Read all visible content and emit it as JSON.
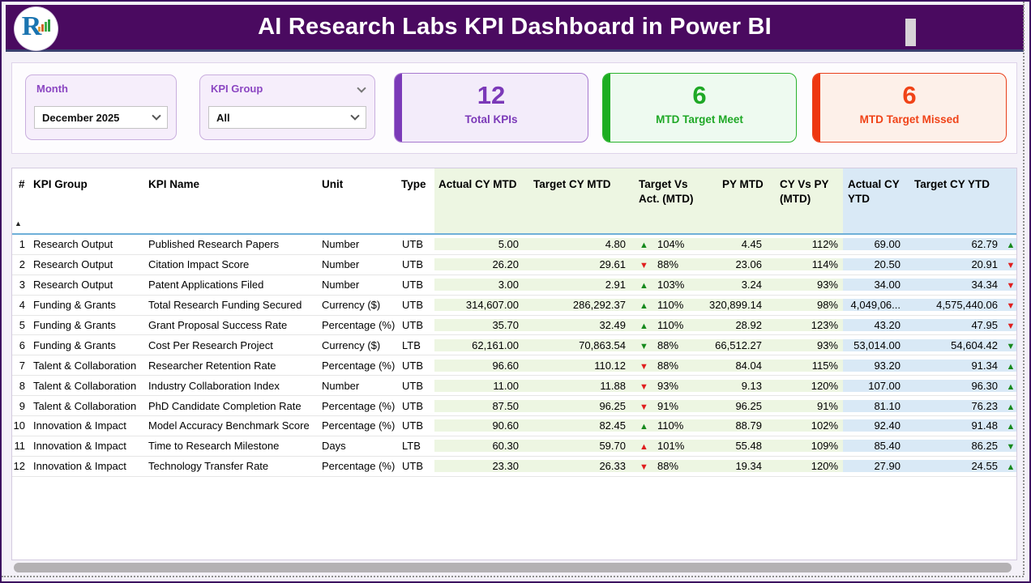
{
  "header": {
    "title": "AI Research Labs KPI Dashboard in Power BI"
  },
  "filters": {
    "month": {
      "label": "Month",
      "value": "December 2025"
    },
    "kpi_group": {
      "label": "KPI Group",
      "value": "All"
    }
  },
  "kpi_cards": [
    {
      "value": "12",
      "label": "Total KPIs",
      "accent": "#7b3ab8"
    },
    {
      "value": "6",
      "label": "MTD Target Meet",
      "accent": "#1cad21"
    },
    {
      "value": "6",
      "label": "MTD Target Missed",
      "accent": "#ee3610"
    }
  ],
  "table": {
    "columns": [
      {
        "field": "num",
        "label": "#",
        "zone": ""
      },
      {
        "field": "group",
        "label": "KPI Group",
        "zone": ""
      },
      {
        "field": "name",
        "label": "KPI Name",
        "zone": ""
      },
      {
        "field": "unit",
        "label": "Unit",
        "zone": ""
      },
      {
        "field": "type",
        "label": "Type",
        "zone": ""
      },
      {
        "field": "actual_mtd",
        "label": "Actual CY MTD",
        "zone": "zg"
      },
      {
        "field": "target_mtd",
        "label": "Target CY MTD",
        "zone": "zg"
      },
      {
        "field": "tva",
        "label": "Target Vs Act. (MTD)",
        "zone": "zg"
      },
      {
        "field": "py_mtd",
        "label": "PY MTD",
        "zone": "zg"
      },
      {
        "field": "cy_vs_py",
        "label": "CY Vs PY (MTD)",
        "zone": "zg"
      },
      {
        "field": "actual_ytd",
        "label": "Actual CY YTD",
        "zone": "zb"
      },
      {
        "field": "target_ytd",
        "label": "Target CY YTD",
        "zone": "zb"
      },
      {
        "field": "ytd_trend",
        "label": "",
        "zone": "zb"
      }
    ],
    "sort_column": "num",
    "sort_direction": "ascending",
    "rows": [
      {
        "num": "1",
        "group": "Research Output",
        "name": "Published Research Papers",
        "unit": "Number",
        "type": "UTB",
        "actual_mtd": "5.00",
        "target_mtd": "4.80",
        "tva_arrow": "up",
        "tva_color": "green",
        "tva_pct": "104%",
        "py_mtd": "4.45",
        "cy_vs_py": "112%",
        "actual_ytd": "69.00",
        "target_ytd": "62.79",
        "ytd_arrow": "up",
        "ytd_color": "green"
      },
      {
        "num": "2",
        "group": "Research Output",
        "name": "Citation Impact Score",
        "unit": "Number",
        "type": "UTB",
        "actual_mtd": "26.20",
        "target_mtd": "29.61",
        "tva_arrow": "down",
        "tva_color": "red",
        "tva_pct": "88%",
        "py_mtd": "23.06",
        "cy_vs_py": "114%",
        "actual_ytd": "20.50",
        "target_ytd": "20.91",
        "ytd_arrow": "down",
        "ytd_color": "red"
      },
      {
        "num": "3",
        "group": "Research Output",
        "name": "Patent Applications Filed",
        "unit": "Number",
        "type": "UTB",
        "actual_mtd": "3.00",
        "target_mtd": "2.91",
        "tva_arrow": "up",
        "tva_color": "green",
        "tva_pct": "103%",
        "py_mtd": "3.24",
        "cy_vs_py": "93%",
        "actual_ytd": "34.00",
        "target_ytd": "34.34",
        "ytd_arrow": "down",
        "ytd_color": "red"
      },
      {
        "num": "4",
        "group": "Funding & Grants",
        "name": "Total Research Funding Secured",
        "unit": "Currency ($)",
        "type": "UTB",
        "actual_mtd": "314,607.00",
        "target_mtd": "286,292.37",
        "tva_arrow": "up",
        "tva_color": "green",
        "tva_pct": "110%",
        "py_mtd": "320,899.14",
        "cy_vs_py": "98%",
        "actual_ytd": "4,049,06...",
        "target_ytd": "4,575,440.06",
        "ytd_arrow": "down",
        "ytd_color": "red"
      },
      {
        "num": "5",
        "group": "Funding & Grants",
        "name": "Grant Proposal Success Rate",
        "unit": "Percentage (%)",
        "type": "UTB",
        "actual_mtd": "35.70",
        "target_mtd": "32.49",
        "tva_arrow": "up",
        "tva_color": "green",
        "tva_pct": "110%",
        "py_mtd": "28.92",
        "cy_vs_py": "123%",
        "actual_ytd": "43.20",
        "target_ytd": "47.95",
        "ytd_arrow": "down",
        "ytd_color": "red"
      },
      {
        "num": "6",
        "group": "Funding & Grants",
        "name": "Cost Per Research Project",
        "unit": "Currency ($)",
        "type": "LTB",
        "actual_mtd": "62,161.00",
        "target_mtd": "70,863.54",
        "tva_arrow": "down",
        "tva_color": "green",
        "tva_pct": "88%",
        "py_mtd": "66,512.27",
        "cy_vs_py": "93%",
        "actual_ytd": "53,014.00",
        "target_ytd": "54,604.42",
        "ytd_arrow": "down",
        "ytd_color": "green"
      },
      {
        "num": "7",
        "group": "Talent & Collaboration",
        "name": "Researcher Retention Rate",
        "unit": "Percentage (%)",
        "type": "UTB",
        "actual_mtd": "96.60",
        "target_mtd": "110.12",
        "tva_arrow": "down",
        "tva_color": "red",
        "tva_pct": "88%",
        "py_mtd": "84.04",
        "cy_vs_py": "115%",
        "actual_ytd": "93.20",
        "target_ytd": "91.34",
        "ytd_arrow": "up",
        "ytd_color": "green"
      },
      {
        "num": "8",
        "group": "Talent & Collaboration",
        "name": "Industry Collaboration Index",
        "unit": "Number",
        "type": "UTB",
        "actual_mtd": "11.00",
        "target_mtd": "11.88",
        "tva_arrow": "down",
        "tva_color": "red",
        "tva_pct": "93%",
        "py_mtd": "9.13",
        "cy_vs_py": "120%",
        "actual_ytd": "107.00",
        "target_ytd": "96.30",
        "ytd_arrow": "up",
        "ytd_color": "green"
      },
      {
        "num": "9",
        "group": "Talent & Collaboration",
        "name": "PhD Candidate Completion Rate",
        "unit": "Percentage (%)",
        "type": "UTB",
        "actual_mtd": "87.50",
        "target_mtd": "96.25",
        "tva_arrow": "down",
        "tva_color": "red",
        "tva_pct": "91%",
        "py_mtd": "96.25",
        "cy_vs_py": "91%",
        "actual_ytd": "81.10",
        "target_ytd": "76.23",
        "ytd_arrow": "up",
        "ytd_color": "green"
      },
      {
        "num": "10",
        "group": "Innovation & Impact",
        "name": "Model Accuracy Benchmark Score",
        "unit": "Percentage (%)",
        "type": "UTB",
        "actual_mtd": "90.60",
        "target_mtd": "82.45",
        "tva_arrow": "up",
        "tva_color": "green",
        "tva_pct": "110%",
        "py_mtd": "88.79",
        "cy_vs_py": "102%",
        "actual_ytd": "92.40",
        "target_ytd": "91.48",
        "ytd_arrow": "up",
        "ytd_color": "green"
      },
      {
        "num": "11",
        "group": "Innovation & Impact",
        "name": "Time to Research Milestone",
        "unit": "Days",
        "type": "LTB",
        "actual_mtd": "60.30",
        "target_mtd": "59.70",
        "tva_arrow": "up",
        "tva_color": "red",
        "tva_pct": "101%",
        "py_mtd": "55.48",
        "cy_vs_py": "109%",
        "actual_ytd": "85.40",
        "target_ytd": "86.25",
        "ytd_arrow": "down",
        "ytd_color": "green"
      },
      {
        "num": "12",
        "group": "Innovation & Impact",
        "name": "Technology Transfer Rate",
        "unit": "Percentage (%)",
        "type": "UTB",
        "actual_mtd": "23.30",
        "target_mtd": "26.33",
        "tva_arrow": "down",
        "tva_color": "red",
        "tva_pct": "88%",
        "py_mtd": "19.34",
        "cy_vs_py": "120%",
        "actual_ytd": "27.90",
        "target_ytd": "24.55",
        "ytd_arrow": "up",
        "ytd_color": "green"
      }
    ]
  },
  "colors": {
    "header_bg": "#4a0a60",
    "mtd_zone_bg": "#edf6e2",
    "ytd_zone_bg": "#d9e9f6",
    "arrow_green": "#168a1d",
    "arrow_red": "#e01f1f",
    "kpi_purple": "#7b39b8",
    "kpi_green": "#1fa826",
    "kpi_red": "#f04318"
  }
}
